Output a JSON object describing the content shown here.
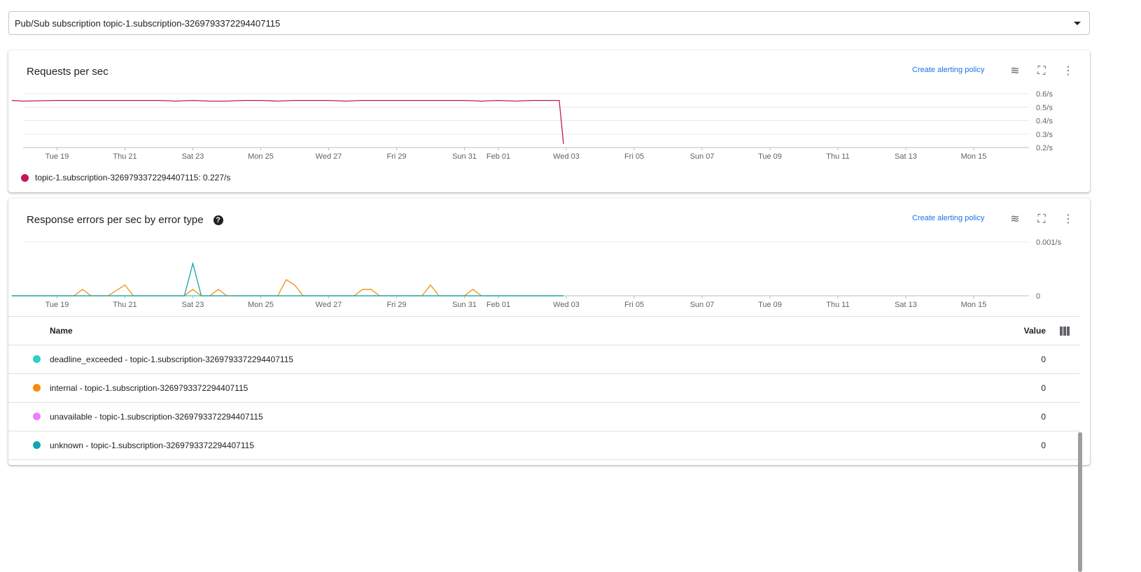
{
  "selector": {
    "value": "Pub/Sub subscription topic-1.subscription-3269793372294407115"
  },
  "x_ticks": [
    "Tue 19",
    "Thu 21",
    "Sat 23",
    "Mon 25",
    "Wed 27",
    "Fri 29",
    "Sun 31",
    "Feb 01",
    "Wed 03",
    "Fri 05",
    "Sun 07",
    "Tue 09",
    "Thu 11",
    "Sat 13",
    "Mon 15"
  ],
  "create_alert": "Create alerting policy",
  "chart_data": [
    {
      "type": "line",
      "title": "Requests per sec",
      "ylim": [
        0.2,
        0.6
      ],
      "y_ticks": [
        "0.6/s",
        "0.5/s",
        "0.4/s",
        "0.3/s",
        "0.2/s"
      ],
      "grid": true,
      "xlim": [
        "Jan 17 16:00",
        "Feb 16 15:00"
      ],
      "series": [
        {
          "name": "topic-1.subscription-3269793372294407115",
          "color": "#c2185b",
          "x": [
            "Jan 17 16:00",
            "Jan 18 00:00",
            "Jan 19 00:00",
            "Jan 20 00:00",
            "Jan 21 00:00",
            "Jan 22 00:00",
            "Jan 22 12:00",
            "Jan 23 00:00",
            "Jan 23 12:00",
            "Jan 24 00:00",
            "Jan 24 12:00",
            "Jan 25 00:00",
            "Jan 25 12:00",
            "Jan 26 00:00",
            "Jan 27 00:00",
            "Jan 27 12:00",
            "Jan 28 00:00",
            "Jan 29 00:00",
            "Jan 30 00:00",
            "Jan 31 00:00",
            "Jan 31 12:00",
            "Feb 01 00:00",
            "Feb 01 12:00",
            "Feb 02 00:00",
            "Feb 02 19:00",
            "Feb 02 22:00"
          ],
          "y": [
            0.55,
            0.545,
            0.55,
            0.55,
            0.55,
            0.55,
            0.545,
            0.55,
            0.545,
            0.545,
            0.55,
            0.55,
            0.545,
            0.55,
            0.55,
            0.545,
            0.55,
            0.55,
            0.55,
            0.55,
            0.545,
            0.55,
            0.545,
            0.55,
            0.55,
            0.227
          ]
        }
      ],
      "legend_value": "0.227/s"
    },
    {
      "type": "line",
      "title": "Response errors per sec by error type",
      "ylim": [
        0,
        0.001
      ],
      "y_ticks": [
        "0.001/s",
        "0"
      ],
      "grid": true,
      "xlim": [
        "Jan 17 16:00",
        "Feb 16 15:00"
      ],
      "series": [
        {
          "name": "deadline_exceeded - topic-1.subscription-3269793372294407115",
          "color": "#2bd0c2",
          "value": "0",
          "x": [
            "Jan 17 16:00",
            "Feb 02 22:00"
          ],
          "y": [
            0,
            0
          ]
        },
        {
          "name": "internal - topic-1.subscription-3269793372294407115",
          "color": "#f78c0c",
          "value": "0",
          "x": [
            "Jan 17 16:00",
            "Jan 19 12:00",
            "Jan 19 18:00",
            "Jan 20 00:00",
            "Jan 20 12:00",
            "Jan 21 00:00",
            "Jan 21 06:00",
            "Jan 22 18:00",
            "Jan 23 00:00",
            "Jan 23 06:00",
            "Jan 23 12:00",
            "Jan 23 18:00",
            "Jan 24 00:00",
            "Jan 25 12:00",
            "Jan 25 18:00",
            "Jan 26 00:00",
            "Jan 26 06:00",
            "Jan 27 18:00",
            "Jan 28 00:00",
            "Jan 28 06:00",
            "Jan 28 12:00",
            "Jan 29 18:00",
            "Jan 30 00:00",
            "Jan 30 06:00",
            "Jan 31 00:00",
            "Jan 31 06:00",
            "Jan 31 12:00",
            "Feb 02 22:00"
          ],
          "y": [
            0,
            0,
            0.00012,
            0,
            0,
            0.0002,
            0,
            0,
            0.00012,
            0,
            0,
            0.00012,
            0,
            0,
            0.0003,
            0.0002,
            0,
            0,
            0.00012,
            0.00012,
            0,
            0,
            0.0002,
            0,
            0,
            0.00012,
            0,
            0
          ]
        },
        {
          "name": "unavailable - topic-1.subscription-3269793372294407115",
          "color": "#ea80fc",
          "value": "0",
          "x": [],
          "y": []
        },
        {
          "name": "unknown - topic-1.subscription-3269793372294407115",
          "color": "#12a4af",
          "value": "0",
          "x": [
            "Jan 17 16:00",
            "Jan 22 18:00",
            "Jan 23 00:00",
            "Jan 23 06:00",
            "Feb 02 22:00"
          ],
          "y": [
            0,
            0,
            0.0006,
            0,
            0
          ]
        }
      ]
    }
  ],
  "table": {
    "col_name": "Name",
    "col_value": "Value"
  }
}
